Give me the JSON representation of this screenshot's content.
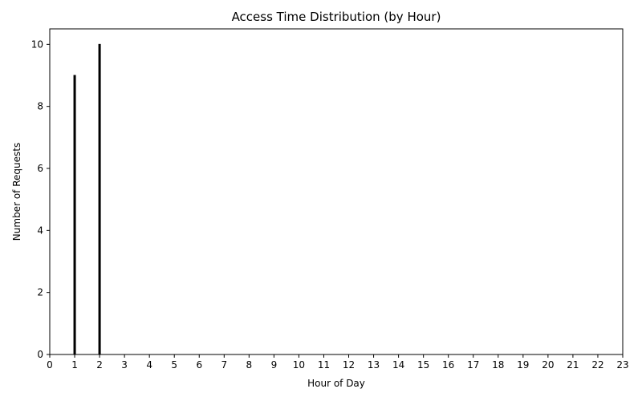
{
  "chart_data": {
    "type": "bar",
    "title": "Access Time Distribution (by Hour)",
    "xlabel": "Hour of Day",
    "ylabel": "Number of Requests",
    "categories": [
      "0",
      "1",
      "2",
      "3",
      "4",
      "5",
      "6",
      "7",
      "8",
      "9",
      "10",
      "11",
      "12",
      "13",
      "14",
      "15",
      "16",
      "17",
      "18",
      "19",
      "20",
      "21",
      "22",
      "23"
    ],
    "values": [
      0,
      9,
      10,
      0,
      0,
      0,
      0,
      0,
      0,
      0,
      0,
      0,
      0,
      0,
      0,
      0,
      0,
      0,
      0,
      0,
      0,
      0,
      0,
      0
    ],
    "xlim": [
      0,
      23
    ],
    "ylim": [
      0,
      10.5
    ],
    "yticks": [
      0,
      2,
      4,
      6,
      8,
      10
    ],
    "bar_color": "#000000",
    "grid": false,
    "legend": "none"
  }
}
